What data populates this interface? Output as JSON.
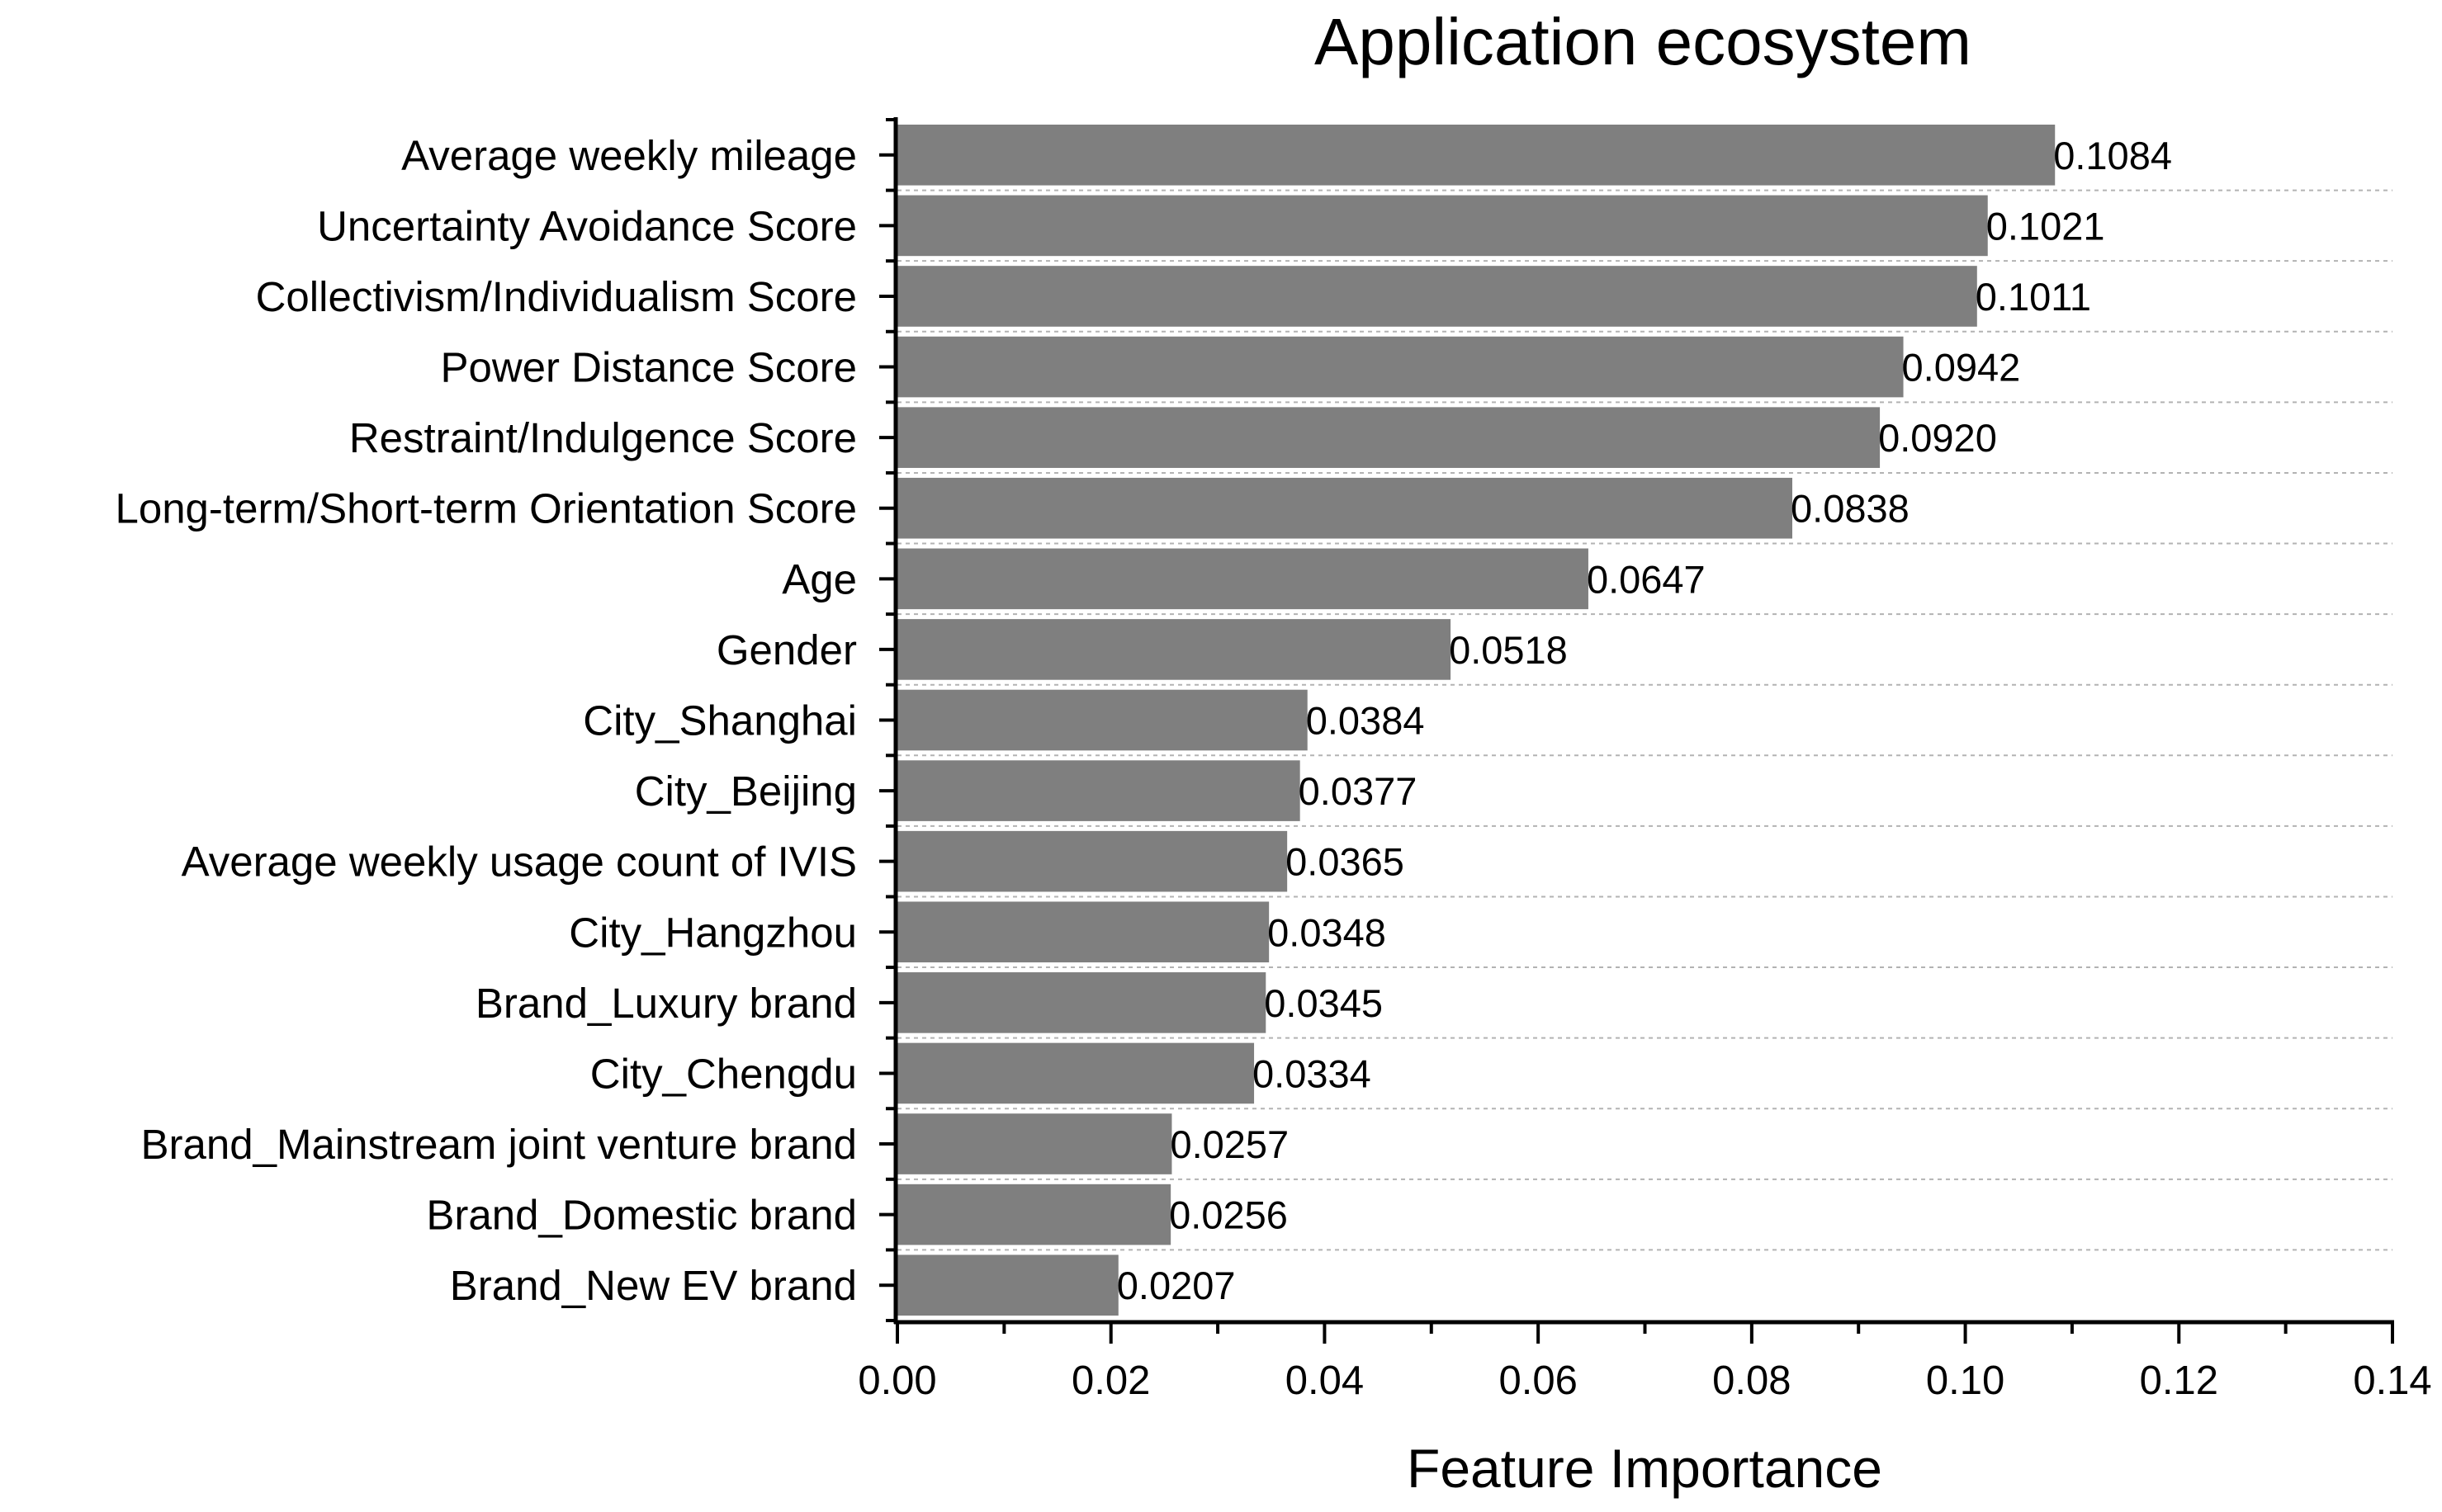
{
  "chart_data": {
    "type": "bar",
    "orientation": "horizontal",
    "title": "Application ecosystem",
    "xlabel": "Feature Importance",
    "ylabel": "",
    "xlim": [
      0,
      0.14
    ],
    "xticks": [
      "0.00",
      "0.02",
      "0.04",
      "0.06",
      "0.08",
      "0.10",
      "0.12",
      "0.14"
    ],
    "grid": "horizontal dashed",
    "bar_color": "#7f7f7f",
    "categories": [
      "Average weekly mileage",
      "Uncertainty Avoidance Score",
      "Collectivism/Individualism Score",
      "Power Distance Score",
      "Restraint/Indulgence Score",
      "Long-term/Short-term Orientation Score",
      "Age",
      "Gender",
      "City_Shanghai",
      "City_Beijing",
      "Average weekly usage count of IVIS",
      "City_Hangzhou",
      "Brand_Luxury brand",
      "City_Chengdu",
      "Brand_Mainstream joint venture brand",
      "Brand_Domestic brand",
      "Brand_New EV brand"
    ],
    "values": [
      0.1084,
      0.1021,
      0.1011,
      0.0942,
      0.092,
      0.0838,
      0.0647,
      0.0518,
      0.0384,
      0.0377,
      0.0365,
      0.0348,
      0.0345,
      0.0334,
      0.0257,
      0.0256,
      0.0207
    ],
    "value_labels": [
      "0.1084",
      "0.1021",
      "0.1011",
      "0.0942",
      "0.0920",
      "0.0838",
      "0.0647",
      "0.0518",
      "0.0384",
      "0.0377",
      "0.0365",
      "0.0348",
      "0.0345",
      "0.0334",
      "0.0257",
      "0.0256",
      "0.0207"
    ]
  }
}
